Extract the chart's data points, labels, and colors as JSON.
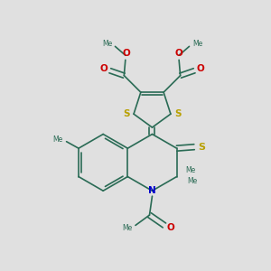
{
  "bg_color": "#e0e0e0",
  "bond_color": "#2a6b55",
  "bond_lw": 1.2,
  "S_color": "#b8a000",
  "N_color": "#0000cc",
  "O_color": "#cc0000",
  "figsize": [
    3.0,
    3.0
  ],
  "dpi": 100,
  "xlim": [
    0,
    10
  ],
  "ylim": [
    0,
    10
  ]
}
